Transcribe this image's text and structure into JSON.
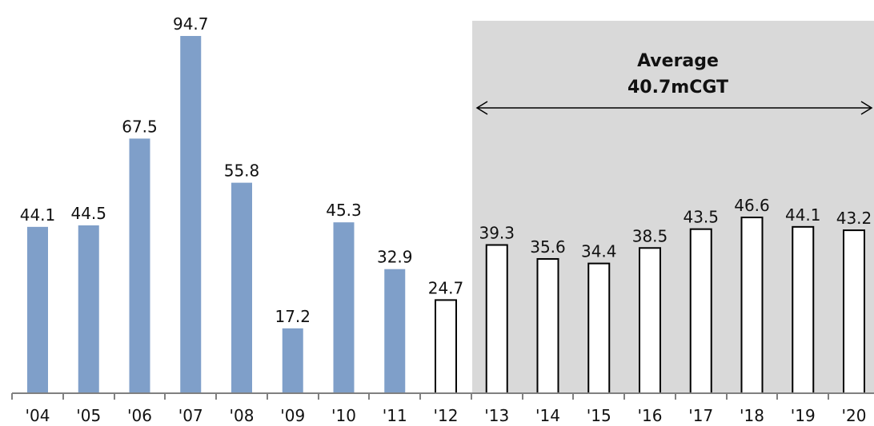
{
  "chart_data": {
    "type": "bar",
    "categories": [
      "'04",
      "'05",
      "'06",
      "'07",
      "'08",
      "'09",
      "'10",
      "'11",
      "'12",
      "'13",
      "'14",
      "'15",
      "'16",
      "'17",
      "'18",
      "'19",
      "'20"
    ],
    "values": [
      44.1,
      44.5,
      67.5,
      94.7,
      55.8,
      17.2,
      45.3,
      32.9,
      24.7,
      39.3,
      35.6,
      34.4,
      38.5,
      43.5,
      46.6,
      44.1,
      43.2
    ],
    "value_labels": [
      "44.1",
      "44.5",
      "67.5",
      "94.7",
      "55.8",
      "17.2",
      "45.3",
      "32.9",
      "24.7",
      "39.3",
      "35.6",
      "34.4",
      "38.5",
      "43.5",
      "46.6",
      "44.1",
      "43.2"
    ],
    "bar_styles": [
      "filled",
      "filled",
      "filled",
      "filled",
      "filled",
      "filled",
      "filled",
      "filled",
      "outline",
      "outline",
      "outline",
      "outline",
      "outline",
      "outline",
      "outline",
      "outline",
      "outline"
    ],
    "colors": {
      "filled_bar": "#7f9fc9",
      "outline_bar": "#000000",
      "highlight_region": "#d9d9d9",
      "axis": "#808080"
    },
    "ylim": [
      0,
      100
    ],
    "grid": false,
    "highlight": {
      "from_category": "'13",
      "to_category": "'20",
      "line1": "Average",
      "line2": "40.7mCGT"
    }
  }
}
